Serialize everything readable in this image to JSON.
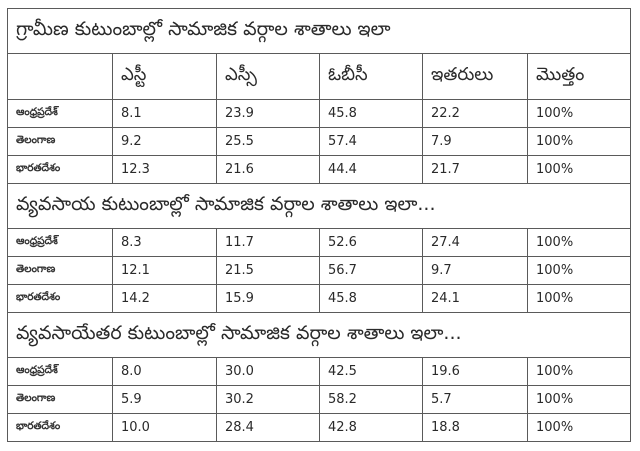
{
  "columns": [
    "",
    "ఎస్టీ",
    "ఎస్సీ",
    "ఓబీసీ",
    "ఇతరులు",
    "మొత్తం"
  ],
  "sections": [
    {
      "title": "గ్రామీణ కుటుంబాల్లో సామాజిక వర్గాల శాతాలు ఇలా",
      "rows": [
        {
          "label": "ఆంధ్రప్రదేశ్",
          "st": "8.1",
          "sc": "23.9",
          "obc": "45.8",
          "others": "22.2",
          "total": "100%"
        },
        {
          "label": "తెలంగాణ",
          "st": "9.2",
          "sc": "25.5",
          "obc": "57.4",
          "others": "7.9",
          "total": "100%"
        },
        {
          "label": "భారతదేశం",
          "st": "12.3",
          "sc": "21.6",
          "obc": "44.4",
          "others": "21.7",
          "total": "100%"
        }
      ]
    },
    {
      "title": "వ్యవసాయ కుటుంబాల్లో సామాజిక వర్గాల శాతాలు ఇలా...",
      "rows": [
        {
          "label": "ఆంధ్రప్రదేశ్",
          "st": "8.3",
          "sc": "11.7",
          "obc": "52.6",
          "others": "27.4",
          "total": "100%"
        },
        {
          "label": "తెలంగాణ",
          "st": "12.1",
          "sc": "21.5",
          "obc": "56.7",
          "others": "9.7",
          "total": "100%"
        },
        {
          "label": "భారతదేశం",
          "st": "14.2",
          "sc": "15.9",
          "obc": "45.8",
          "others": "24.1",
          "total": "100%"
        }
      ]
    },
    {
      "title": "వ్యవసాయేతర కుటుంబాల్లో సామాజిక వర్గాల శాతాలు ఇలా...",
      "rows": [
        {
          "label": "ఆంధ్రప్రదేశ్",
          "st": "8.0",
          "sc": "30.0",
          "obc": "42.5",
          "others": "19.6",
          "total": "100%"
        },
        {
          "label": "తెలంగాణ",
          "st": "5.9",
          "sc": "30.2",
          "obc": "58.2",
          "others": "5.7",
          "total": "100%"
        },
        {
          "label": "భారతదేశం",
          "st": "10.0",
          "sc": "28.4",
          "obc": "42.8",
          "others": "18.8",
          "total": "100%"
        }
      ]
    }
  ],
  "colors": {
    "border": "#5a5a5a",
    "text": "#2a2a2a",
    "background": "#ffffff"
  }
}
